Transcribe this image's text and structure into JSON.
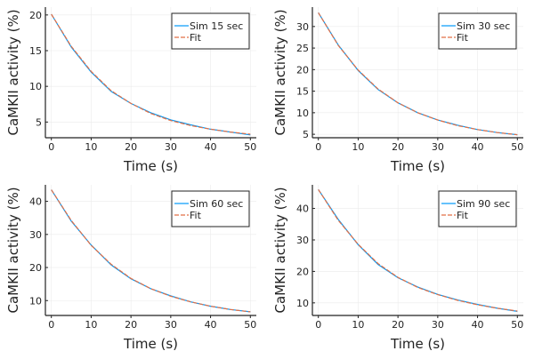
{
  "colors": {
    "sim": "#009AFA",
    "fit": "#E26F46",
    "grid": "#ebebeb",
    "axis": "#222222"
  },
  "chart_data": [
    {
      "type": "line",
      "xlabel": "Time (s)",
      "ylabel": "CaMKII activity (%)",
      "xlim": [
        -1.5,
        51.5
      ],
      "ylim": [
        2.8,
        21.1
      ],
      "xticks": [
        0,
        10,
        20,
        30,
        40,
        50
      ],
      "yticks": [
        5,
        10,
        15,
        20
      ],
      "grid": true,
      "legend": "top-right",
      "x": [
        0,
        5,
        10,
        15,
        20,
        25,
        30,
        35,
        40,
        45,
        50
      ],
      "series": [
        {
          "name": "Sim 15 sec",
          "values": [
            20.1,
            15.5,
            12.0,
            9.3,
            7.6,
            6.3,
            5.3,
            4.6,
            4.0,
            3.6,
            3.2
          ]
        },
        {
          "name": "Fit",
          "values": [
            20.1,
            15.6,
            12.1,
            9.4,
            7.6,
            6.2,
            5.2,
            4.5,
            4.0,
            3.6,
            3.3
          ]
        }
      ]
    },
    {
      "type": "line",
      "xlabel": "Time (s)",
      "ylabel": "CaMKII activity (%)",
      "xlim": [
        -1.5,
        51.5
      ],
      "ylim": [
        4.2,
        34.5
      ],
      "xticks": [
        0,
        10,
        20,
        30,
        40,
        50
      ],
      "yticks": [
        5,
        10,
        15,
        20,
        25,
        30
      ],
      "grid": true,
      "legend": "top-right",
      "x": [
        0,
        5,
        10,
        15,
        20,
        25,
        30,
        35,
        40,
        45,
        50
      ],
      "series": [
        {
          "name": "Sim 30 sec",
          "values": [
            33.2,
            25.7,
            19.8,
            15.4,
            12.3,
            10.0,
            8.3,
            7.1,
            6.1,
            5.4,
            4.9
          ]
        },
        {
          "name": "Fit",
          "values": [
            33.2,
            25.6,
            19.9,
            15.5,
            12.3,
            10.0,
            8.3,
            7.0,
            6.1,
            5.4,
            4.9
          ]
        }
      ]
    },
    {
      "type": "line",
      "xlabel": "Time (s)",
      "ylabel": "CaMKII activity (%)",
      "xlim": [
        -1.5,
        51.5
      ],
      "ylim": [
        5.5,
        45
      ],
      "xticks": [
        0,
        10,
        20,
        30,
        40,
        50
      ],
      "yticks": [
        10,
        20,
        30,
        40
      ],
      "grid": true,
      "legend": "top-right",
      "x": [
        0,
        5,
        10,
        15,
        20,
        25,
        30,
        35,
        40,
        45,
        50
      ],
      "series": [
        {
          "name": "Sim 60 sec",
          "values": [
            43.5,
            34.0,
            26.8,
            20.8,
            16.6,
            13.6,
            11.4,
            9.6,
            8.3,
            7.3,
            6.6
          ]
        },
        {
          "name": "Fit",
          "values": [
            43.5,
            34.2,
            26.7,
            21.0,
            16.7,
            13.6,
            11.3,
            9.6,
            8.3,
            7.3,
            6.6
          ]
        }
      ]
    },
    {
      "type": "line",
      "xlabel": "Time (s)",
      "ylabel": "CaMKII activity (%)",
      "xlim": [
        -1.5,
        51.5
      ],
      "ylim": [
        6,
        47.5
      ],
      "xticks": [
        0,
        10,
        20,
        30,
        40,
        50
      ],
      "yticks": [
        10,
        20,
        30,
        40
      ],
      "grid": true,
      "legend": "top-right",
      "x": [
        0,
        5,
        10,
        15,
        20,
        25,
        30,
        35,
        40,
        45,
        50
      ],
      "series": [
        {
          "name": "Sim 90 sec",
          "values": [
            46.0,
            36.5,
            28.5,
            22.2,
            18.0,
            15.0,
            12.7,
            10.9,
            9.5,
            8.3,
            7.3
          ]
        },
        {
          "name": "Fit",
          "values": [
            46.0,
            36.2,
            28.6,
            22.5,
            18.1,
            14.9,
            12.6,
            10.8,
            9.4,
            8.3,
            7.4
          ]
        }
      ]
    }
  ]
}
